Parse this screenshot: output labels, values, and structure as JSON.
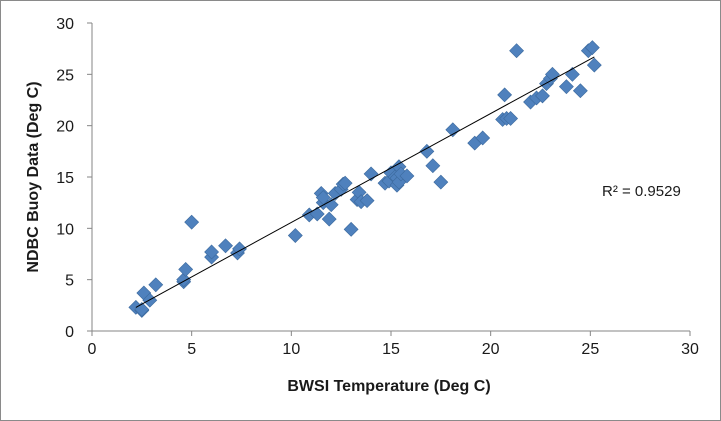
{
  "chart_data": {
    "type": "scatter",
    "title": "",
    "xlabel": "BWSI Temperature (Deg C)",
    "ylabel": "NDBC Buoy Data (Deg C)",
    "xlim": [
      0,
      30
    ],
    "ylim": [
      0,
      30
    ],
    "xticks": [
      "0",
      "5",
      "10",
      "15",
      "20",
      "25",
      "30"
    ],
    "yticks": [
      "0",
      "5",
      "10",
      "15",
      "20",
      "25",
      "30"
    ],
    "grid": false,
    "legend": "none",
    "marker": "diamond",
    "marker_color": "#4f81bd",
    "trendline": {
      "type": "linear",
      "from": [
        2.2,
        2.3
      ],
      "to": [
        25.2,
        26.7
      ],
      "color": "#000000"
    },
    "annotation": "R² = 0.9529",
    "series": [
      {
        "x": [
          2.2,
          2.5,
          2.6,
          2.5,
          2.9,
          3.2,
          4.6,
          4.6,
          4.7,
          5.0,
          6.0,
          6.0,
          6.7,
          7.3,
          7.4,
          10.2,
          10.9,
          11.3,
          11.5,
          11.6,
          11.6,
          11.9,
          12.0,
          12.2,
          12.5,
          12.6,
          12.7,
          13.0,
          13.3,
          13.4,
          13.5,
          13.8,
          14.0,
          14.7,
          14.9,
          15.0,
          15.2,
          15.3,
          15.3,
          15.4,
          15.4,
          15.5,
          15.8,
          16.8,
          17.1,
          17.5,
          18.1,
          19.2,
          19.6,
          20.6,
          20.7,
          20.8,
          21.0,
          21.3,
          22.0,
          22.3,
          22.6,
          22.8,
          23.0,
          23.1,
          23.8,
          24.1,
          24.5,
          24.9,
          25.1,
          25.2
        ],
        "y": [
          2.3,
          2.0,
          3.7,
          2.1,
          3.0,
          4.5,
          4.8,
          5.0,
          6.0,
          10.6,
          7.2,
          7.7,
          8.3,
          7.6,
          8.0,
          9.3,
          11.3,
          11.4,
          13.4,
          12.5,
          13.0,
          10.9,
          12.3,
          13.4,
          13.8,
          14.3,
          14.4,
          9.9,
          12.8,
          13.5,
          12.6,
          12.7,
          15.3,
          14.4,
          14.6,
          15.4,
          15.0,
          14.9,
          14.2,
          16.0,
          14.5,
          15.3,
          15.1,
          17.5,
          16.1,
          14.5,
          19.6,
          18.3,
          18.8,
          20.6,
          23.0,
          20.7,
          20.7,
          27.3,
          22.3,
          22.7,
          22.9,
          24.1,
          24.6,
          25.0,
          23.8,
          25.0,
          23.4,
          27.3,
          27.6,
          25.9
        ]
      }
    ]
  }
}
